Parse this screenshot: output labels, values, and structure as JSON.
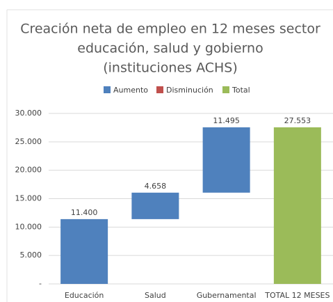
{
  "chart_data": {
    "type": "waterfall",
    "title": [
      "Creación neta de empleo en 12 meses sector",
      "educación, salud y gobierno",
      "(instituciones ACHS)"
    ],
    "legend": [
      {
        "name": "Aumento",
        "color": "#4f81bd"
      },
      {
        "name": "Disminución",
        "color": "#c0504d"
      },
      {
        "name": "Total",
        "color": "#9bbb59"
      }
    ],
    "categories": [
      "Educación",
      "Salud",
      "Gubernamental",
      "TOTAL 12 MESES"
    ],
    "values": [
      11400,
      4658,
      11495,
      27553
    ],
    "value_labels": [
      "11.400",
      "4.658",
      "11.495",
      "27.553"
    ],
    "is_total": [
      false,
      false,
      false,
      true
    ],
    "ylim": [
      0,
      30000
    ],
    "yticks": [
      {
        "value": 0,
        "label": "-"
      },
      {
        "value": 5000,
        "label": "5.000"
      },
      {
        "value": 10000,
        "label": "10.000"
      },
      {
        "value": 15000,
        "label": "15.000"
      },
      {
        "value": 20000,
        "label": "20.000"
      },
      {
        "value": 25000,
        "label": "25.000"
      },
      {
        "value": 30000,
        "label": "30.000"
      }
    ],
    "grid": true
  }
}
